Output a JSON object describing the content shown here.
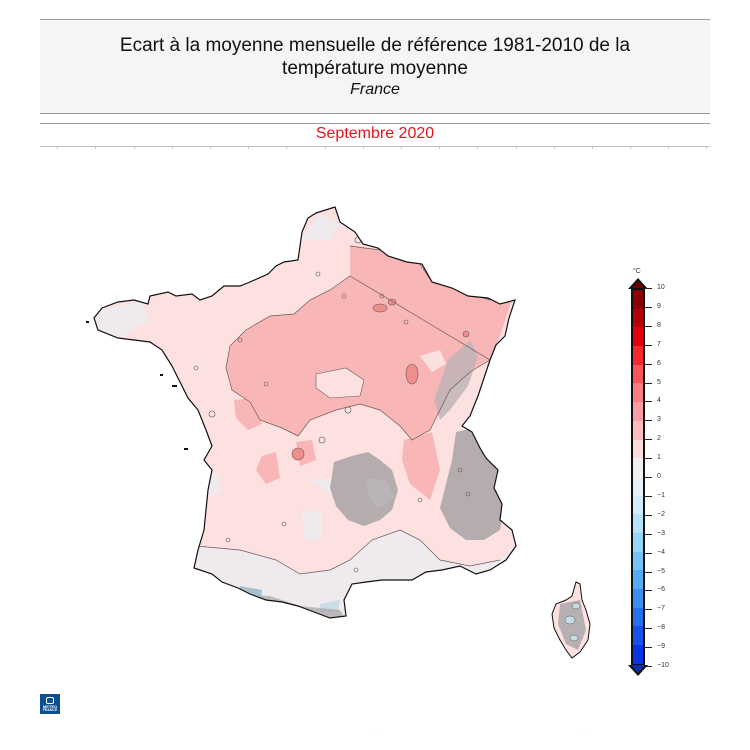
{
  "header": {
    "title_line1": "Ecart à la moyenne mensuelle de référence 1981-2010 de la",
    "title_line2": "température moyenne",
    "subtitle": "France",
    "period": "Septembre 2020",
    "period_color": "#e8141c"
  },
  "colorbar": {
    "unit": "°C",
    "ticks": [
      "10",
      "9",
      "8",
      "7",
      "6",
      "5",
      "4",
      "3",
      "2",
      "1",
      "0",
      "−1",
      "−2",
      "−3",
      "−4",
      "−5",
      "−6",
      "−7",
      "−8",
      "−9",
      "−10"
    ],
    "colors": [
      "#8b0000",
      "#b30008",
      "#e00010",
      "#f42a2e",
      "#f9545a",
      "#fb7d82",
      "#fc9ea3",
      "#fdbcbf",
      "#fddadb",
      "#f3eef1",
      "#e8f0f7",
      "#d3ecfa",
      "#b4e3fb",
      "#94d6fb",
      "#72c4fa",
      "#54acf7",
      "#3b8ff3",
      "#2670ee",
      "#1753ea",
      "#0a35e6"
    ]
  },
  "map": {
    "region": "France",
    "legend_classes": {
      "0_to_1": "#fde0e0",
      "1_to_2": "#f9b6b6",
      "2_to_3": "#f28d8d",
      "minus1_to_0": "#eeeaee",
      "minus2_to_minus1": "#c9dde6",
      "relief_shading": "#a8a2a4"
    }
  },
  "logo": {
    "line1": "METEO",
    "line2": "FRANCE",
    "color": "#0b4f91"
  },
  "footer": {
    "left_note": "··· ·· ·",
    "right_note": "··· ·· ·"
  }
}
